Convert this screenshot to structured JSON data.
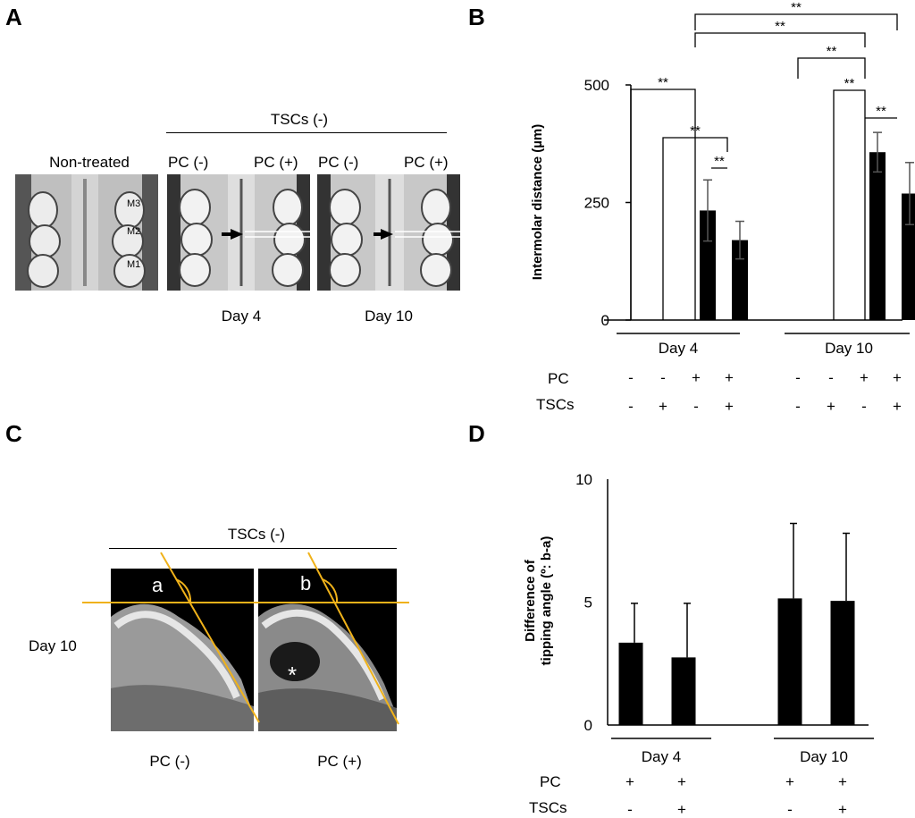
{
  "figure": {
    "panel_labels": {
      "a": "A",
      "b": "B",
      "c": "C",
      "d": "D"
    },
    "panel_a": {
      "top_header": "TSCs (-)",
      "left_title": "Non-treated",
      "sub_pc_neg_1": "PC (-)",
      "sub_pc_pos_1": "PC (+)",
      "sub_pc_neg_2": "PC (-)",
      "sub_pc_pos_2": "PC (+)",
      "molar_labels": [
        "M3",
        "M2",
        "M1"
      ],
      "day_labels": [
        "Day 4",
        "Day 10"
      ]
    },
    "panel_c": {
      "header": "TSCs (-)",
      "row_label": "Day 10",
      "angle_labels": [
        "a",
        "b"
      ],
      "asterisk": "*",
      "bottom_labels": [
        "PC (-)",
        "PC (+)"
      ]
    },
    "colors": {
      "bar": "#000000",
      "angle_line": "#f0b21a",
      "sig": "#000000"
    }
  },
  "chart_data": [
    {
      "panel": "B",
      "type": "bar",
      "ylabel": "Intermolar distance (µm)",
      "ylim": [
        0,
        500
      ],
      "yticks": [
        "0",
        "250",
        "500"
      ],
      "groups": [
        "Day 4",
        "Day 10"
      ],
      "row_labels": [
        "PC",
        "TSCs"
      ],
      "bars": [
        {
          "group": "Day 4",
          "PC": "-",
          "TSCs": "-",
          "value": 0,
          "error": 0
        },
        {
          "group": "Day 4",
          "PC": "-",
          "TSCs": "+",
          "value": 0,
          "error": 0
        },
        {
          "group": "Day 4",
          "PC": "+",
          "TSCs": "-",
          "value": 233,
          "error": 65
        },
        {
          "group": "Day 4",
          "PC": "+",
          "TSCs": "+",
          "value": 170,
          "error": 40
        },
        {
          "group": "Day 10",
          "PC": "-",
          "TSCs": "-",
          "value": 0,
          "error": 0
        },
        {
          "group": "Day 10",
          "PC": "-",
          "TSCs": "+",
          "value": 0,
          "error": 0
        },
        {
          "group": "Day 10",
          "PC": "+",
          "TSCs": "-",
          "value": 357,
          "error": 42
        },
        {
          "group": "Day 10",
          "PC": "+",
          "TSCs": "+",
          "value": 269,
          "error": 66
        }
      ],
      "significance": "**"
    },
    {
      "panel": "D",
      "type": "bar",
      "ylabel_line1": "Difference of",
      "ylabel_line2": "tipping angle (º: b-a)",
      "ylim": [
        0,
        10
      ],
      "yticks": [
        "0",
        "5",
        "10"
      ],
      "groups": [
        "Day 4",
        "Day 10"
      ],
      "row_labels": [
        "PC",
        "TSCs"
      ],
      "bars": [
        {
          "group": "Day 4",
          "PC": "+",
          "TSCs": "-",
          "value": 3.35,
          "error": 1.6
        },
        {
          "group": "Day 4",
          "PC": "+",
          "TSCs": "+",
          "value": 2.75,
          "error": 2.2
        },
        {
          "group": "Day 10",
          "PC": "+",
          "TSCs": "-",
          "value": 5.15,
          "error": 3.05
        },
        {
          "group": "Day 10",
          "PC": "+",
          "TSCs": "+",
          "value": 5.05,
          "error": 2.75
        }
      ]
    }
  ]
}
